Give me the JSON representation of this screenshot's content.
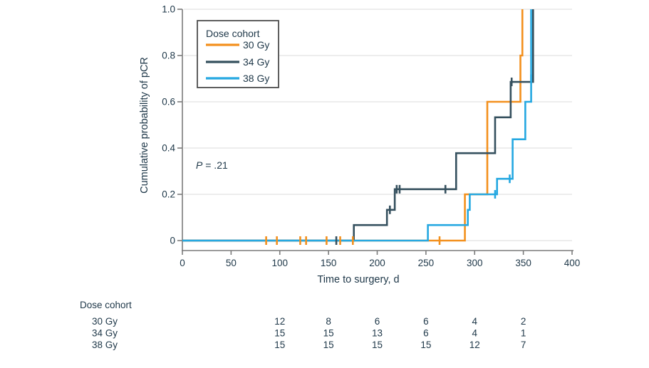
{
  "figure": {
    "ylabel": "Cumulative probability of pCR",
    "xlabel": "Time to surgery, d",
    "annotation": {
      "p_label": "P",
      "p_value": " = .21"
    },
    "legend": {
      "title": "Dose cohort"
    }
  },
  "chart_data": {
    "type": "line",
    "subtype": "step-cumulative-incidence",
    "title": "",
    "xlabel": "Time to surgery, d",
    "ylabel": "Cumulative probability of pCR",
    "xlim": [
      0,
      400
    ],
    "ylim": [
      0,
      1.0
    ],
    "x_ticks": [
      0,
      50,
      100,
      150,
      200,
      250,
      300,
      350,
      400
    ],
    "y_ticks": [
      0,
      0.2,
      0.4,
      0.6,
      0.8,
      1.0
    ],
    "y_tick_labels": [
      "0",
      "0.2",
      "0.4",
      "0.6",
      "0.8",
      "1.0"
    ],
    "grid": true,
    "legend_position": "top-left-inside",
    "annotation": "P = .21",
    "series": [
      {
        "name": "30 Gy",
        "color": "#F3901D",
        "events": [
          [
            290,
            0.2
          ],
          [
            313,
            0.6
          ],
          [
            347,
            0.8
          ],
          [
            349,
            1.0
          ]
        ],
        "censors": [
          [
            86,
            0
          ],
          [
            97,
            0
          ],
          [
            121,
            0
          ],
          [
            127,
            0
          ],
          [
            148,
            0
          ],
          [
            162,
            0
          ],
          [
            175,
            0
          ],
          [
            264,
            0
          ]
        ]
      },
      {
        "name": "34 Gy",
        "color": "#35505E",
        "events": [
          [
            176,
            0.067
          ],
          [
            210,
            0.133
          ],
          [
            218,
            0.222
          ],
          [
            281,
            0.378
          ],
          [
            321,
            0.533
          ],
          [
            337,
            0.686
          ],
          [
            360,
            1.0
          ]
        ],
        "censors": [
          [
            158,
            0
          ],
          [
            213,
            0.133
          ],
          [
            220,
            0.222
          ],
          [
            223,
            0.222
          ],
          [
            270,
            0.222
          ],
          [
            338,
            0.686
          ]
        ]
      },
      {
        "name": "38 Gy",
        "color": "#25A8E1",
        "events": [
          [
            252,
            0.067
          ],
          [
            293,
            0.133
          ],
          [
            295,
            0.2
          ],
          [
            323,
            0.267
          ],
          [
            339,
            0.438
          ],
          [
            352,
            0.6
          ],
          [
            358,
            1.0
          ]
        ],
        "censors": [
          [
            321,
            0.2
          ],
          [
            336,
            0.267
          ],
          [
            358,
            0.7
          ]
        ]
      }
    ]
  },
  "risk_table": {
    "header": "Dose cohort",
    "times": [
      100,
      150,
      200,
      250,
      300,
      350
    ],
    "rows": [
      {
        "label": "30 Gy",
        "values": [
          "12",
          "8",
          "6",
          "6",
          "4",
          "2"
        ]
      },
      {
        "label": "34 Gy",
        "values": [
          "15",
          "15",
          "13",
          "6",
          "4",
          "1"
        ]
      },
      {
        "label": "38 Gy",
        "values": [
          "15",
          "15",
          "15",
          "15",
          "12",
          "7"
        ]
      }
    ]
  },
  "style_colors": {
    "grid": "#E7E7E7",
    "axis": "#7B7B7B",
    "text": "#20394A",
    "legend_border": "#4D4D4D"
  }
}
